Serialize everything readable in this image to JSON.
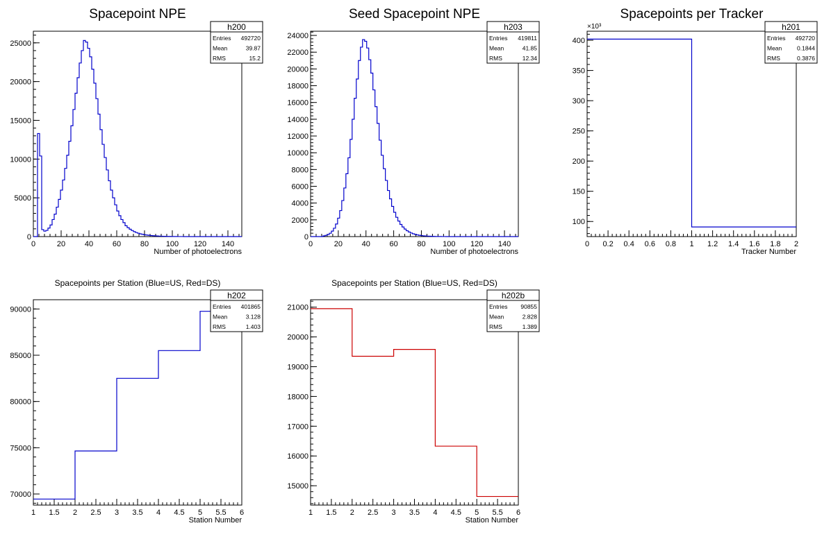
{
  "chart_data": [
    {
      "type": "bar",
      "title": "Spacepoint NPE",
      "xlabel": "Number of photoelectrons",
      "ylabel": "",
      "xlim": [
        0,
        150
      ],
      "ylim": [
        0,
        26500
      ],
      "bin_width": 1.5,
      "x_ticks": [
        0,
        20,
        40,
        60,
        80,
        100,
        120,
        140
      ],
      "y_ticks": [
        0,
        5000,
        10000,
        15000,
        20000,
        25000
      ],
      "y_exponent": "",
      "color": "#0000cc",
      "stats": {
        "name": "h200",
        "entries": "492720",
        "mean": "39.87",
        "rms": "15.2"
      },
      "values": [
        0,
        0,
        13300,
        10400,
        900,
        700,
        800,
        1100,
        1500,
        2200,
        2900,
        3800,
        4800,
        6000,
        7300,
        8800,
        10500,
        12300,
        14300,
        16400,
        18500,
        20500,
        22400,
        24000,
        25300,
        25100,
        24300,
        23200,
        21600,
        19800,
        17800,
        15800,
        13800,
        11900,
        10200,
        8600,
        7200,
        6000,
        5000,
        4100,
        3300,
        2700,
        2200,
        1800,
        1400,
        1150,
        950,
        780,
        640,
        520,
        430,
        350,
        290,
        240,
        200,
        165,
        135,
        110,
        90,
        75,
        60,
        50,
        40,
        32,
        25,
        20,
        16,
        12,
        9,
        7,
        5,
        4,
        3,
        2,
        1,
        1,
        0,
        0,
        0,
        0,
        0,
        0,
        0,
        0,
        0,
        0,
        0,
        0,
        0,
        0,
        0,
        0,
        0,
        0,
        0,
        0,
        0,
        0,
        0,
        0
      ]
    },
    {
      "type": "bar",
      "title": "Seed Spacepoint NPE",
      "xlabel": "Number of photoelectrons",
      "ylabel": "",
      "xlim": [
        0,
        150
      ],
      "ylim": [
        0,
        24500
      ],
      "bin_width": 1.5,
      "x_ticks": [
        0,
        20,
        40,
        60,
        80,
        100,
        120,
        140
      ],
      "y_ticks": [
        0,
        2000,
        4000,
        6000,
        8000,
        10000,
        12000,
        14000,
        16000,
        18000,
        20000,
        22000,
        24000
      ],
      "y_exponent": "",
      "color": "#0000cc",
      "stats": {
        "name": "h203",
        "entries": "419811",
        "mean": "41.85",
        "rms": "12.34"
      },
      "values": [
        0,
        0,
        0,
        0,
        0,
        0,
        80,
        150,
        250,
        400,
        650,
        1000,
        1500,
        2200,
        3100,
        4300,
        5800,
        7500,
        9400,
        11600,
        14000,
        16500,
        18800,
        21000,
        22600,
        23500,
        23300,
        22500,
        21100,
        19500,
        17500,
        15500,
        13500,
        11500,
        9700,
        8100,
        6700,
        5500,
        4500,
        3600,
        2900,
        2300,
        1850,
        1450,
        1150,
        900,
        700,
        550,
        430,
        330,
        260,
        200,
        155,
        120,
        90,
        70,
        55,
        40,
        30,
        22,
        16,
        12,
        9,
        6,
        4,
        3,
        2,
        1,
        1,
        0,
        0,
        0,
        0,
        0,
        0,
        0,
        0,
        0,
        0,
        0,
        0,
        0,
        0,
        0,
        0,
        0,
        0,
        0,
        0,
        0,
        0,
        0,
        0,
        0,
        0,
        0,
        0,
        0,
        0,
        0
      ]
    },
    {
      "type": "bar",
      "title": "Spacepoints per Tracker",
      "xlabel": "Tracker Number",
      "ylabel": "",
      "xlim": [
        0,
        2
      ],
      "ylim": [
        75,
        415
      ],
      "bin_width": 1,
      "x_ticks": [
        0,
        0.2,
        0.4,
        0.6,
        0.8,
        1,
        1.2,
        1.4,
        1.6,
        1.8,
        2
      ],
      "y_ticks": [
        100,
        150,
        200,
        250,
        300,
        350,
        400
      ],
      "y_exponent": "×10³",
      "color": "#0000cc",
      "stats": {
        "name": "h201",
        "entries": "492720",
        "mean": "0.1844",
        "rms": "0.3876"
      },
      "values": [
        401.9,
        90.9
      ]
    },
    {
      "type": "bar",
      "title": "Spacepoints per Station (Blue=US, Red=DS)",
      "xlabel": "Station Number",
      "ylabel": "",
      "xlim": [
        1,
        6
      ],
      "ylim": [
        68800,
        91000
      ],
      "bin_width": 1,
      "x_ticks": [
        1,
        1.5,
        2,
        2.5,
        3,
        3.5,
        4,
        4.5,
        5,
        5.5,
        6
      ],
      "y_ticks": [
        70000,
        75000,
        80000,
        85000,
        90000
      ],
      "y_exponent": "",
      "color": "#0000cc",
      "stats": {
        "name": "h202",
        "entries": "401865",
        "mean": "3.128",
        "rms": "1.403"
      },
      "values": [
        69450,
        74650,
        82500,
        85500,
        89750
      ]
    },
    {
      "type": "bar",
      "title": "Spacepoints per Station (Blue=US, Red=DS)",
      "xlabel": "Station Number",
      "ylabel": "",
      "xlim": [
        1,
        6
      ],
      "ylim": [
        14350,
        21250
      ],
      "bin_width": 1,
      "x_ticks": [
        1,
        1.5,
        2,
        2.5,
        3,
        3.5,
        4,
        4.5,
        5,
        5.5,
        6
      ],
      "y_ticks": [
        15000,
        16000,
        17000,
        18000,
        19000,
        20000,
        21000
      ],
      "y_exponent": "",
      "color": "#cc0000",
      "stats": {
        "name": "h202b",
        "entries": "90855",
        "mean": "2.828",
        "rms": "1.389"
      },
      "values": [
        20950,
        19350,
        19580,
        16330,
        14640
      ]
    }
  ],
  "stats_labels": {
    "entries": "Entries",
    "mean": "Mean",
    "rms": "RMS"
  }
}
